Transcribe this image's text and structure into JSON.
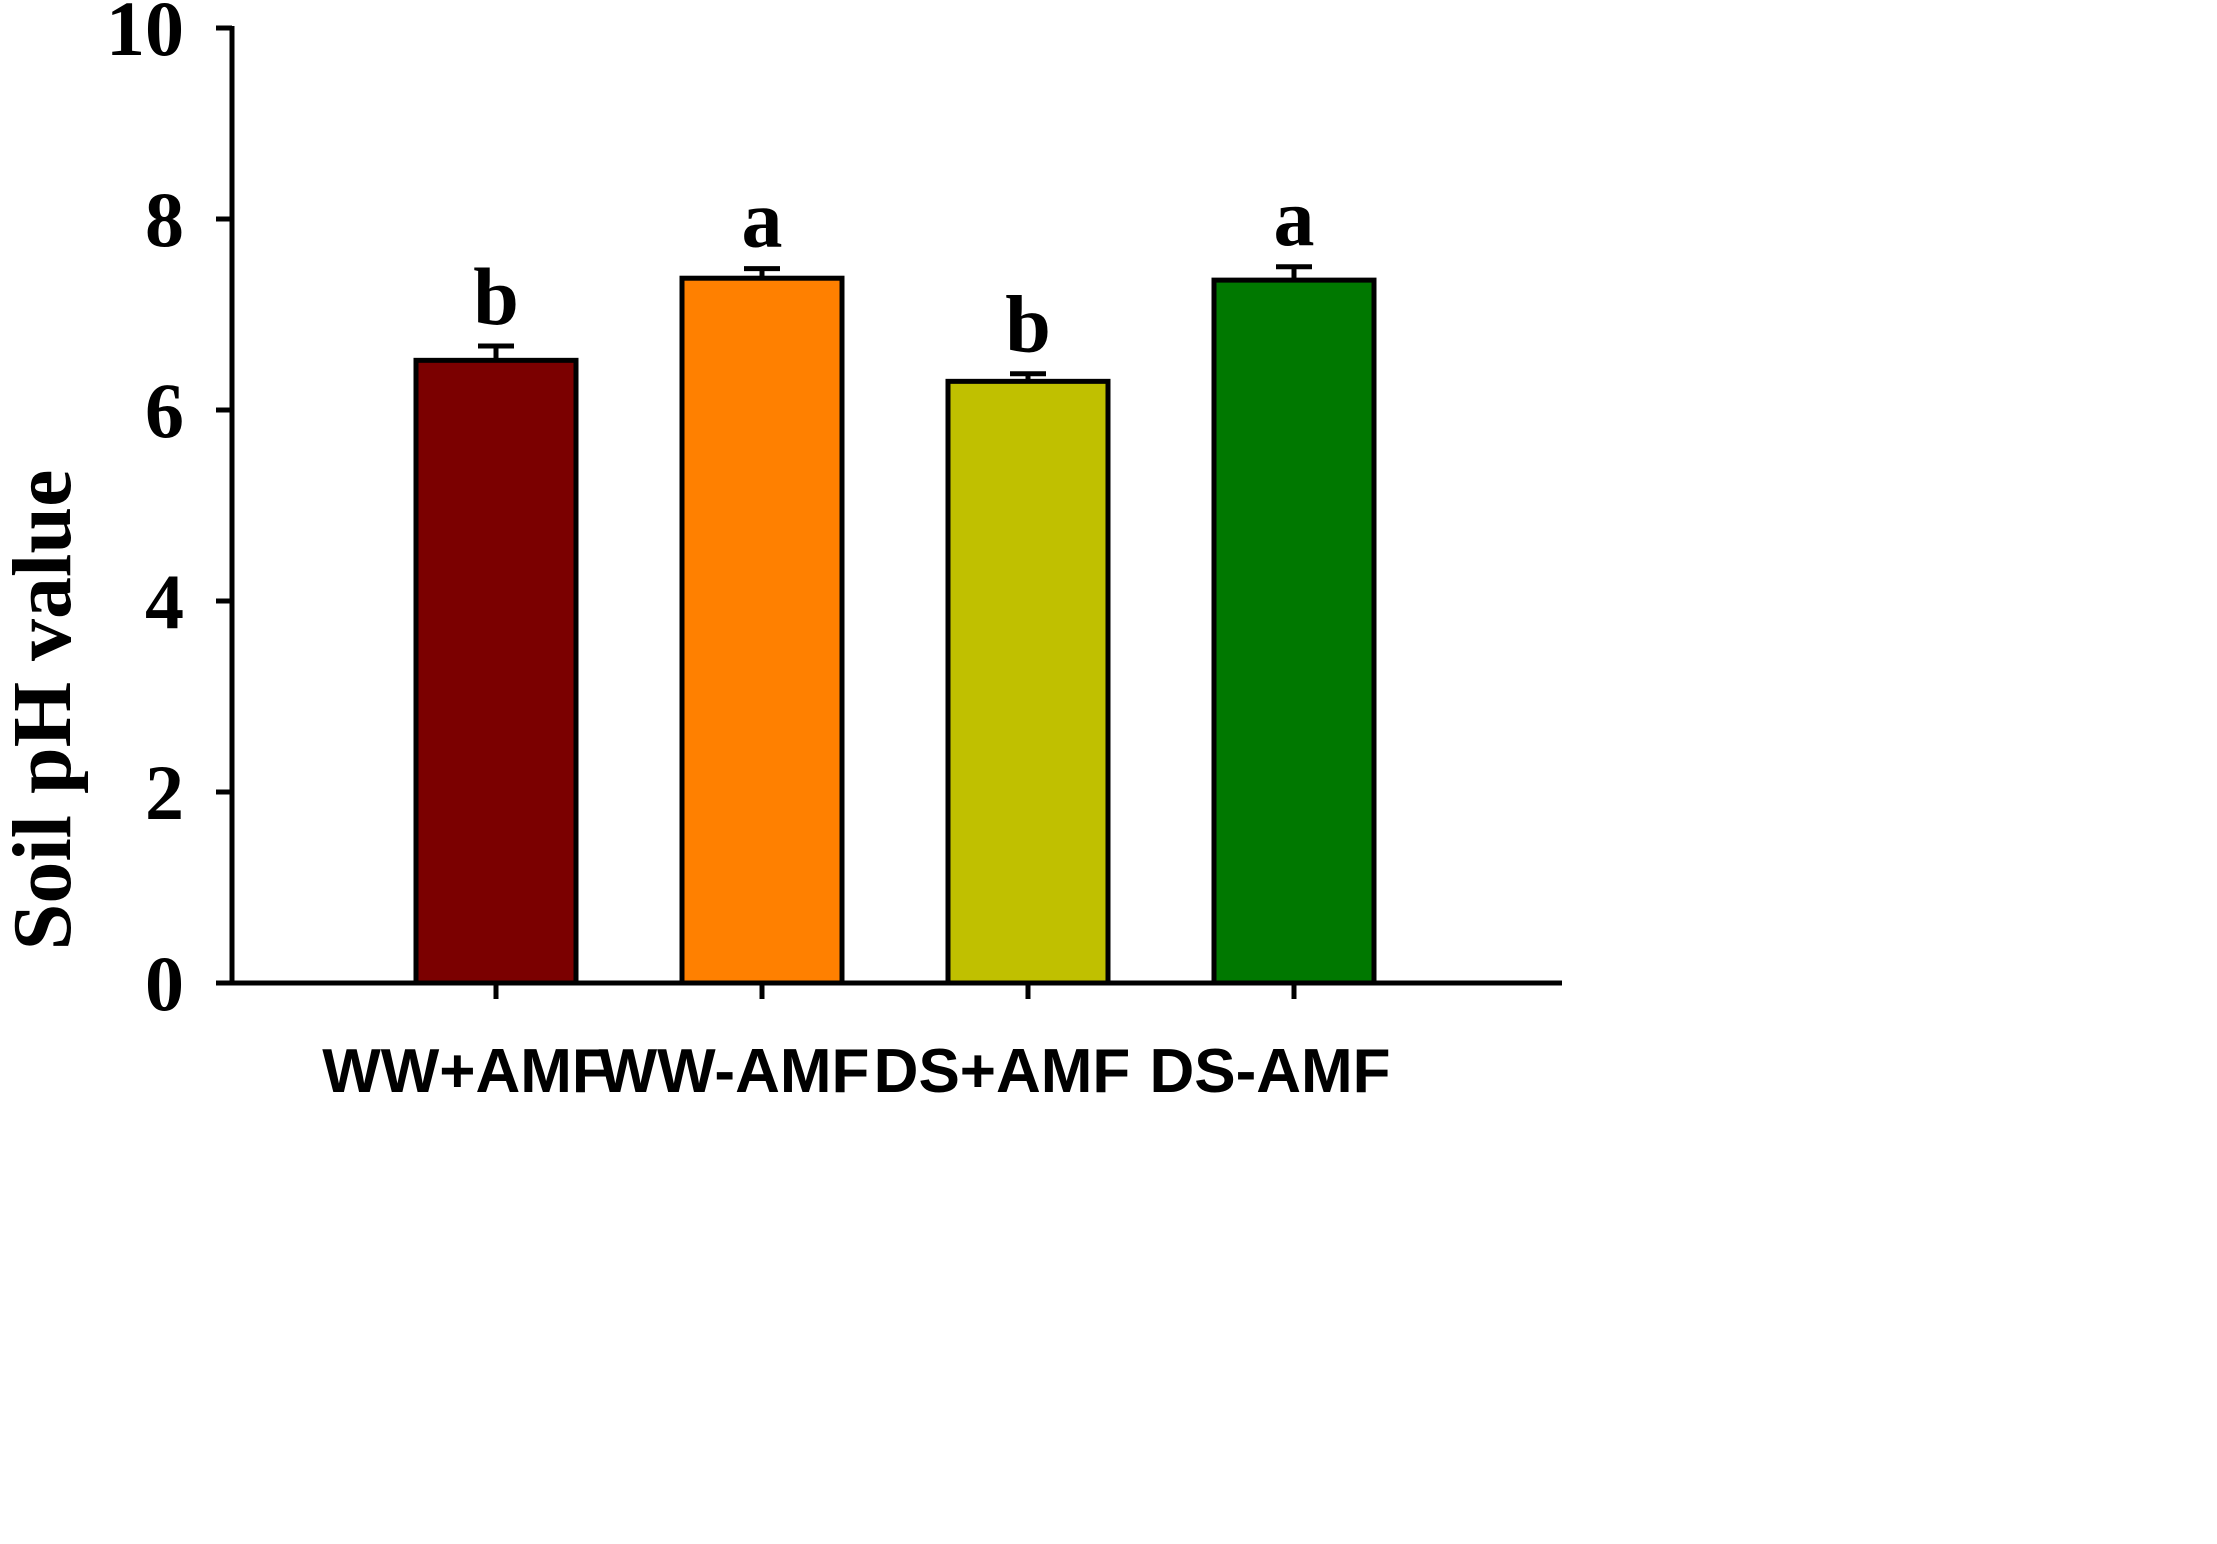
{
  "chart_data": {
    "type": "bar",
    "ylabel": "Soil pH value",
    "xlabel": "",
    "ylim": [
      0,
      10
    ],
    "yticks": [
      0,
      2,
      4,
      6,
      8,
      10
    ],
    "categories": [
      "WW+AMF",
      "WW-AMF",
      "DS+AMF",
      "DS-AMF"
    ],
    "values": [
      6.52,
      7.38,
      6.3,
      7.36
    ],
    "errors": [
      0.15,
      0.1,
      0.08,
      0.14
    ],
    "significance": [
      "b",
      "a",
      "b",
      "a"
    ],
    "colors": [
      "#7b0000",
      "#ff8000",
      "#c0c000",
      "#007800"
    ],
    "grid": false,
    "legend": "none"
  }
}
